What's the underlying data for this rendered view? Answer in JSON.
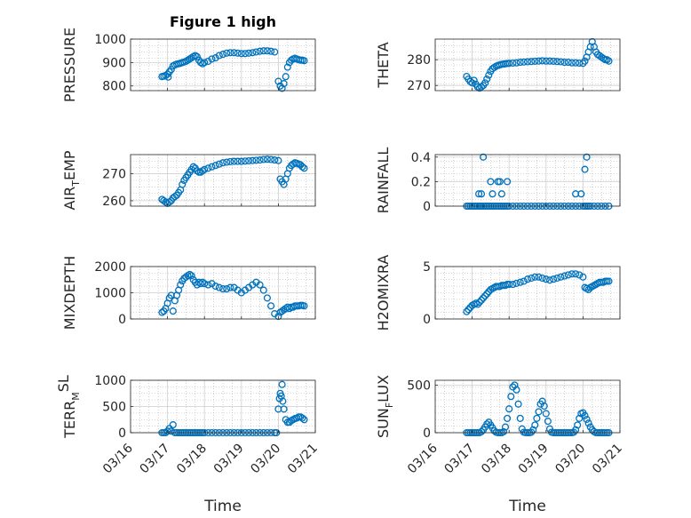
{
  "figure_title": "Figure 1 high",
  "colors": {
    "marker": "#0072BD",
    "axis": "#262626",
    "grid": "#b0b0b0"
  },
  "chart_data": [
    {
      "type": "scatter",
      "key": "pressure",
      "title": "Figure 1 high",
      "ylabel_main": "PRESSURE",
      "ylabel_sub": "",
      "ylabel_tail": "",
      "ylabel_sup": "",
      "xlabel": "",
      "ylim": [
        780,
        1000
      ],
      "yticks": [
        800,
        900,
        1000
      ],
      "ytick_labels": [
        "800",
        "900",
        "1000"
      ],
      "x_day_range": [
        16,
        21
      ],
      "x": [
        16.85,
        16.9,
        16.95,
        17.0,
        17.02,
        17.05,
        17.1,
        17.15,
        17.2,
        17.25,
        17.3,
        17.35,
        17.4,
        17.45,
        17.5,
        17.55,
        17.6,
        17.65,
        17.7,
        17.75,
        17.8,
        17.85,
        17.9,
        17.95,
        18.0,
        18.1,
        18.2,
        18.3,
        18.4,
        18.5,
        18.6,
        18.7,
        18.8,
        18.9,
        19.0,
        19.1,
        19.2,
        19.3,
        19.4,
        19.5,
        19.6,
        19.7,
        19.8,
        19.9,
        20.0,
        20.05,
        20.1,
        20.15,
        20.2,
        20.25,
        20.3,
        20.35,
        20.4,
        20.45,
        20.5,
        20.55,
        20.6,
        20.65,
        20.7
      ],
      "y": [
        840,
        842,
        845,
        850,
        838,
        860,
        870,
        885,
        890,
        893,
        895,
        897,
        900,
        902,
        905,
        910,
        915,
        920,
        925,
        930,
        925,
        910,
        900,
        895,
        900,
        905,
        915,
        920,
        930,
        935,
        940,
        942,
        942,
        940,
        938,
        938,
        940,
        942,
        945,
        948,
        950,
        950,
        948,
        945,
        820,
        800,
        790,
        810,
        840,
        880,
        900,
        910,
        915,
        918,
        915,
        912,
        910,
        910,
        908
      ]
    },
    {
      "type": "scatter",
      "key": "theta",
      "ylabel_main": "THETA",
      "ylabel_sub": "",
      "ylabel_tail": "",
      "ylabel_sup": "",
      "xlabel": "",
      "ylim": [
        268,
        288
      ],
      "yticks": [
        270,
        280
      ],
      "ytick_labels": [
        "270",
        "280"
      ],
      "x_day_range": [
        16,
        21
      ],
      "x": [
        16.85,
        16.9,
        16.95,
        17.0,
        17.05,
        17.1,
        17.15,
        17.2,
        17.25,
        17.3,
        17.35,
        17.4,
        17.45,
        17.5,
        17.55,
        17.6,
        17.65,
        17.7,
        17.75,
        17.8,
        17.85,
        17.9,
        17.95,
        18.0,
        18.1,
        18.2,
        18.3,
        18.4,
        18.5,
        18.6,
        18.7,
        18.8,
        18.9,
        19.0,
        19.1,
        19.2,
        19.3,
        19.4,
        19.5,
        19.6,
        19.7,
        19.8,
        19.9,
        20.0,
        20.05,
        20.1,
        20.15,
        20.2,
        20.25,
        20.3,
        20.35,
        20.4,
        20.45,
        20.5,
        20.55,
        20.6,
        20.65,
        20.7
      ],
      "y": [
        273.5,
        272.5,
        271.5,
        271,
        272,
        270.5,
        269.5,
        269,
        269.5,
        270,
        271,
        272.5,
        274,
        275.5,
        276.5,
        277,
        277.5,
        277.8,
        278,
        278.2,
        278.3,
        278.4,
        278.5,
        278.6,
        278.7,
        278.8,
        279,
        279.1,
        279.2,
        279.3,
        279.4,
        279.5,
        279.6,
        279.5,
        279.5,
        279.4,
        279.3,
        279.2,
        279,
        279,
        278.8,
        278.8,
        278.7,
        278.6,
        279.5,
        281,
        283,
        285,
        287,
        285,
        283,
        282,
        281.5,
        281,
        280.5,
        280,
        280,
        279.5
      ]
    },
    {
      "type": "scatter",
      "key": "air_temp",
      "ylabel_main": "AIR",
      "ylabel_sub": "T",
      "ylabel_tail": "EMP",
      "ylabel_sup": "",
      "xlabel": "",
      "ylim": [
        258,
        277
      ],
      "yticks": [
        260,
        270
      ],
      "ytick_labels": [
        "260",
        "270"
      ],
      "x_day_range": [
        16,
        21
      ],
      "x": [
        16.85,
        16.9,
        16.95,
        17.0,
        17.05,
        17.1,
        17.15,
        17.2,
        17.25,
        17.3,
        17.35,
        17.4,
        17.45,
        17.5,
        17.55,
        17.6,
        17.65,
        17.7,
        17.75,
        17.8,
        17.85,
        17.9,
        17.95,
        18.0,
        18.1,
        18.2,
        18.3,
        18.4,
        18.5,
        18.6,
        18.7,
        18.8,
        18.9,
        19.0,
        19.1,
        19.2,
        19.3,
        19.4,
        19.5,
        19.6,
        19.7,
        19.8,
        19.9,
        20.0,
        20.05,
        20.1,
        20.15,
        20.2,
        20.25,
        20.3,
        20.35,
        20.4,
        20.45,
        20.5,
        20.55,
        20.6,
        20.65,
        20.7
      ],
      "y": [
        260.5,
        260,
        259.5,
        259,
        259.5,
        260,
        261,
        261.5,
        262,
        263,
        264,
        266,
        267.5,
        268.5,
        269.5,
        270.5,
        271.5,
        272.5,
        272,
        271,
        270.5,
        270.5,
        271,
        271.5,
        272,
        272.5,
        273,
        273.5,
        274,
        274.2,
        274.4,
        274.5,
        274.5,
        274.5,
        274.6,
        274.7,
        274.8,
        274.9,
        275,
        275.2,
        275.3,
        275.2,
        275,
        274.8,
        268,
        267,
        266,
        268,
        270,
        272,
        273,
        273.5,
        274,
        273.8,
        273.5,
        273.2,
        272.5,
        272
      ]
    },
    {
      "type": "scatter",
      "key": "rainfall",
      "ylabel_main": "RAINFALL",
      "ylabel_sub": "",
      "ylabel_tail": "",
      "ylabel_sup": "",
      "xlabel": "",
      "ylim": [
        0,
        0.42
      ],
      "yticks": [
        0,
        0.2,
        0.4
      ],
      "ytick_labels": [
        "0",
        "0.2",
        "0.4"
      ],
      "x_day_range": [
        16,
        21
      ],
      "x": [
        16.85,
        16.9,
        16.95,
        17.0,
        17.05,
        17.1,
        17.15,
        17.2,
        17.22,
        17.25,
        17.3,
        17.35,
        17.4,
        17.45,
        17.5,
        17.55,
        17.6,
        17.65,
        17.7,
        17.75,
        17.8,
        17.85,
        17.9,
        17.95,
        18.0,
        18.1,
        18.2,
        18.3,
        18.4,
        18.5,
        18.6,
        18.7,
        18.8,
        18.9,
        19.0,
        19.1,
        19.2,
        19.3,
        19.4,
        19.5,
        19.6,
        19.7,
        19.8,
        19.9,
        20.0,
        20.05,
        20.1,
        20.15,
        20.2,
        20.3,
        20.4,
        20.5,
        20.6,
        20.7,
        17.18,
        17.25,
        17.3,
        17.5,
        17.55,
        17.7,
        17.75,
        17.8,
        17.95,
        19.8,
        19.95,
        20.05,
        20.1
      ],
      "y": [
        0,
        0,
        0,
        0,
        0,
        0,
        0,
        0,
        0,
        0,
        0,
        0,
        0,
        0,
        0,
        0,
        0,
        0,
        0,
        0,
        0,
        0,
        0,
        0,
        0,
        0,
        0,
        0,
        0,
        0,
        0,
        0,
        0,
        0,
        0,
        0,
        0,
        0,
        0,
        0,
        0,
        0,
        0,
        0,
        0,
        0,
        0,
        0,
        0,
        0,
        0,
        0,
        0,
        0,
        0.1,
        0.1,
        0.4,
        0.2,
        0.1,
        0.2,
        0.2,
        0.1,
        0.2,
        0.1,
        0.1,
        0.3,
        0.4
      ]
    },
    {
      "type": "scatter",
      "key": "mixdepth",
      "ylabel_main": "MIXDEPTH",
      "ylabel_sub": "",
      "ylabel_tail": "",
      "ylabel_sup": "",
      "xlabel": "",
      "ylim": [
        0,
        2000
      ],
      "yticks": [
        0,
        1000,
        2000
      ],
      "ytick_labels": [
        "0",
        "1000",
        "2000"
      ],
      "x_day_range": [
        16,
        21
      ],
      "x": [
        16.85,
        16.9,
        16.95,
        17.0,
        17.05,
        17.1,
        17.15,
        17.2,
        17.25,
        17.3,
        17.35,
        17.4,
        17.45,
        17.5,
        17.55,
        17.6,
        17.65,
        17.7,
        17.75,
        17.8,
        17.85,
        17.9,
        17.95,
        18.0,
        18.1,
        18.2,
        18.3,
        18.4,
        18.5,
        18.6,
        18.7,
        18.8,
        18.9,
        19.0,
        19.1,
        19.2,
        19.3,
        19.4,
        19.5,
        19.6,
        19.7,
        19.8,
        19.9,
        20.0,
        20.05,
        20.1,
        20.15,
        20.2,
        20.25,
        20.3,
        20.35,
        20.4,
        20.45,
        20.5,
        20.55,
        20.6,
        20.65,
        20.7
      ],
      "y": [
        250,
        300,
        400,
        600,
        800,
        900,
        300,
        700,
        900,
        1100,
        1300,
        1450,
        1550,
        1600,
        1650,
        1700,
        1650,
        1500,
        1400,
        1300,
        1400,
        1350,
        1400,
        1350,
        1300,
        1350,
        1250,
        1200,
        1150,
        1150,
        1200,
        1200,
        1100,
        1000,
        1100,
        1200,
        1300,
        1400,
        1300,
        1100,
        800,
        500,
        200,
        100,
        250,
        300,
        350,
        400,
        450,
        400,
        450,
        450,
        500,
        500,
        500,
        520,
        520,
        500
      ]
    },
    {
      "type": "scatter",
      "key": "h2omixra",
      "ylabel_main": "H2OMIXRA",
      "ylabel_sub": "",
      "ylabel_tail": "",
      "ylabel_sup": "",
      "xlabel": "",
      "ylim": [
        0,
        5
      ],
      "yticks": [
        0,
        5
      ],
      "ytick_labels": [
        "0",
        "5"
      ],
      "x_day_range": [
        16,
        21
      ],
      "x": [
        16.85,
        16.9,
        16.95,
        17.0,
        17.05,
        17.1,
        17.15,
        17.2,
        17.25,
        17.3,
        17.35,
        17.4,
        17.45,
        17.5,
        17.55,
        17.6,
        17.65,
        17.7,
        17.75,
        17.8,
        17.85,
        17.9,
        17.95,
        18.0,
        18.1,
        18.2,
        18.3,
        18.4,
        18.5,
        18.6,
        18.7,
        18.8,
        18.9,
        19.0,
        19.1,
        19.2,
        19.3,
        19.4,
        19.5,
        19.6,
        19.7,
        19.8,
        19.9,
        20.0,
        20.05,
        20.1,
        20.15,
        20.2,
        20.25,
        20.3,
        20.35,
        20.4,
        20.45,
        20.5,
        20.55,
        20.6,
        20.65,
        20.7
      ],
      "y": [
        0.7,
        0.9,
        1.1,
        1.3,
        1.4,
        1.5,
        1.4,
        1.6,
        1.8,
        2.0,
        2.2,
        2.4,
        2.6,
        2.8,
        2.9,
        3.0,
        3.1,
        3.1,
        3.1,
        3.2,
        3.2,
        3.2,
        3.3,
        3.3,
        3.3,
        3.4,
        3.5,
        3.6,
        3.8,
        3.9,
        4.0,
        4.0,
        3.9,
        3.8,
        3.7,
        3.8,
        3.9,
        4.0,
        4.1,
        4.2,
        4.3,
        4.3,
        4.2,
        4.0,
        3.0,
        2.9,
        2.8,
        3.0,
        3.1,
        3.2,
        3.3,
        3.4,
        3.5,
        3.5,
        3.5,
        3.6,
        3.6,
        3.6
      ]
    },
    {
      "type": "scatter",
      "key": "terr_msl",
      "ylabel_main": "TERR",
      "ylabel_sub": "M",
      "ylabel_tail": "",
      "ylabel_sup": "SL",
      "xlabel": "Time",
      "ylim": [
        0,
        1000
      ],
      "yticks": [
        0,
        500,
        1000
      ],
      "ytick_labels": [
        "0",
        "500",
        "1000"
      ],
      "x_day_range": [
        16,
        21
      ],
      "x_tick_days": [
        16,
        17,
        18,
        19,
        20,
        21
      ],
      "x_tick_labels": [
        "03/16",
        "03/17",
        "03/18",
        "03/19",
        "03/20",
        "03/21"
      ],
      "x": [
        16.85,
        16.9,
        16.95,
        17.0,
        17.05,
        17.1,
        17.15,
        17.2,
        17.25,
        17.3,
        17.35,
        17.4,
        17.45,
        17.5,
        17.55,
        17.6,
        17.65,
        17.7,
        17.75,
        17.8,
        17.85,
        17.9,
        17.95,
        18.0,
        18.1,
        18.2,
        18.3,
        18.4,
        18.5,
        18.6,
        18.7,
        18.8,
        18.9,
        19.0,
        19.1,
        19.2,
        19.3,
        19.4,
        19.5,
        19.6,
        19.7,
        19.8,
        19.9,
        19.95,
        20.0,
        20.03,
        20.05,
        20.08,
        20.1,
        20.12,
        20.15,
        20.2,
        20.25,
        20.3,
        20.35,
        20.4,
        20.45,
        20.5,
        20.55,
        20.6,
        20.65,
        20.7
      ],
      "y": [
        0,
        0,
        0,
        30,
        80,
        30,
        150,
        0,
        0,
        0,
        0,
        0,
        0,
        0,
        0,
        0,
        0,
        0,
        0,
        0,
        0,
        0,
        0,
        0,
        0,
        0,
        0,
        0,
        0,
        0,
        0,
        0,
        0,
        0,
        0,
        0,
        0,
        0,
        0,
        0,
        0,
        0,
        0,
        0,
        450,
        650,
        750,
        700,
        920,
        600,
        450,
        250,
        200,
        200,
        230,
        250,
        270,
        280,
        300,
        300,
        280,
        250
      ]
    },
    {
      "type": "scatter",
      "key": "sun_flux",
      "ylabel_main": "SUN",
      "ylabel_sub": "F",
      "ylabel_tail": "LUX",
      "ylabel_sup": "",
      "xlabel": "Time",
      "ylim": [
        0,
        550
      ],
      "yticks": [
        0,
        500
      ],
      "ytick_labels": [
        "0",
        "500"
      ],
      "x_day_range": [
        16,
        21
      ],
      "x_tick_days": [
        16,
        17,
        18,
        19,
        20,
        21
      ],
      "x_tick_labels": [
        "03/16",
        "03/17",
        "03/18",
        "03/19",
        "03/20",
        "03/21"
      ],
      "x": [
        16.85,
        16.9,
        16.95,
        17.0,
        17.05,
        17.1,
        17.15,
        17.2,
        17.25,
        17.3,
        17.35,
        17.4,
        17.45,
        17.5,
        17.55,
        17.6,
        17.65,
        17.7,
        17.75,
        17.8,
        17.85,
        17.9,
        17.95,
        18.0,
        18.05,
        18.1,
        18.15,
        18.2,
        18.25,
        18.3,
        18.35,
        18.4,
        18.45,
        18.5,
        18.55,
        18.6,
        18.65,
        18.7,
        18.75,
        18.8,
        18.85,
        18.9,
        18.95,
        19.0,
        19.05,
        19.1,
        19.15,
        19.2,
        19.25,
        19.3,
        19.35,
        19.4,
        19.45,
        19.5,
        19.55,
        19.6,
        19.65,
        19.7,
        19.75,
        19.8,
        19.85,
        19.9,
        19.95,
        20.0,
        20.05,
        20.1,
        20.15,
        20.2,
        20.25,
        20.3,
        20.35,
        20.4,
        20.45,
        20.5,
        20.55,
        20.6,
        20.65,
        20.7
      ],
      "y": [
        0,
        0,
        0,
        0,
        0,
        0,
        0,
        0,
        10,
        30,
        60,
        90,
        110,
        80,
        50,
        20,
        5,
        0,
        0,
        0,
        10,
        60,
        150,
        250,
        380,
        480,
        500,
        450,
        300,
        150,
        40,
        5,
        0,
        0,
        0,
        5,
        30,
        80,
        150,
        220,
        300,
        330,
        280,
        200,
        120,
        40,
        5,
        0,
        0,
        0,
        0,
        0,
        0,
        0,
        0,
        0,
        0,
        0,
        5,
        30,
        80,
        150,
        200,
        210,
        180,
        140,
        100,
        60,
        30,
        10,
        0,
        0,
        0,
        0,
        0,
        0,
        0,
        0
      ]
    }
  ]
}
